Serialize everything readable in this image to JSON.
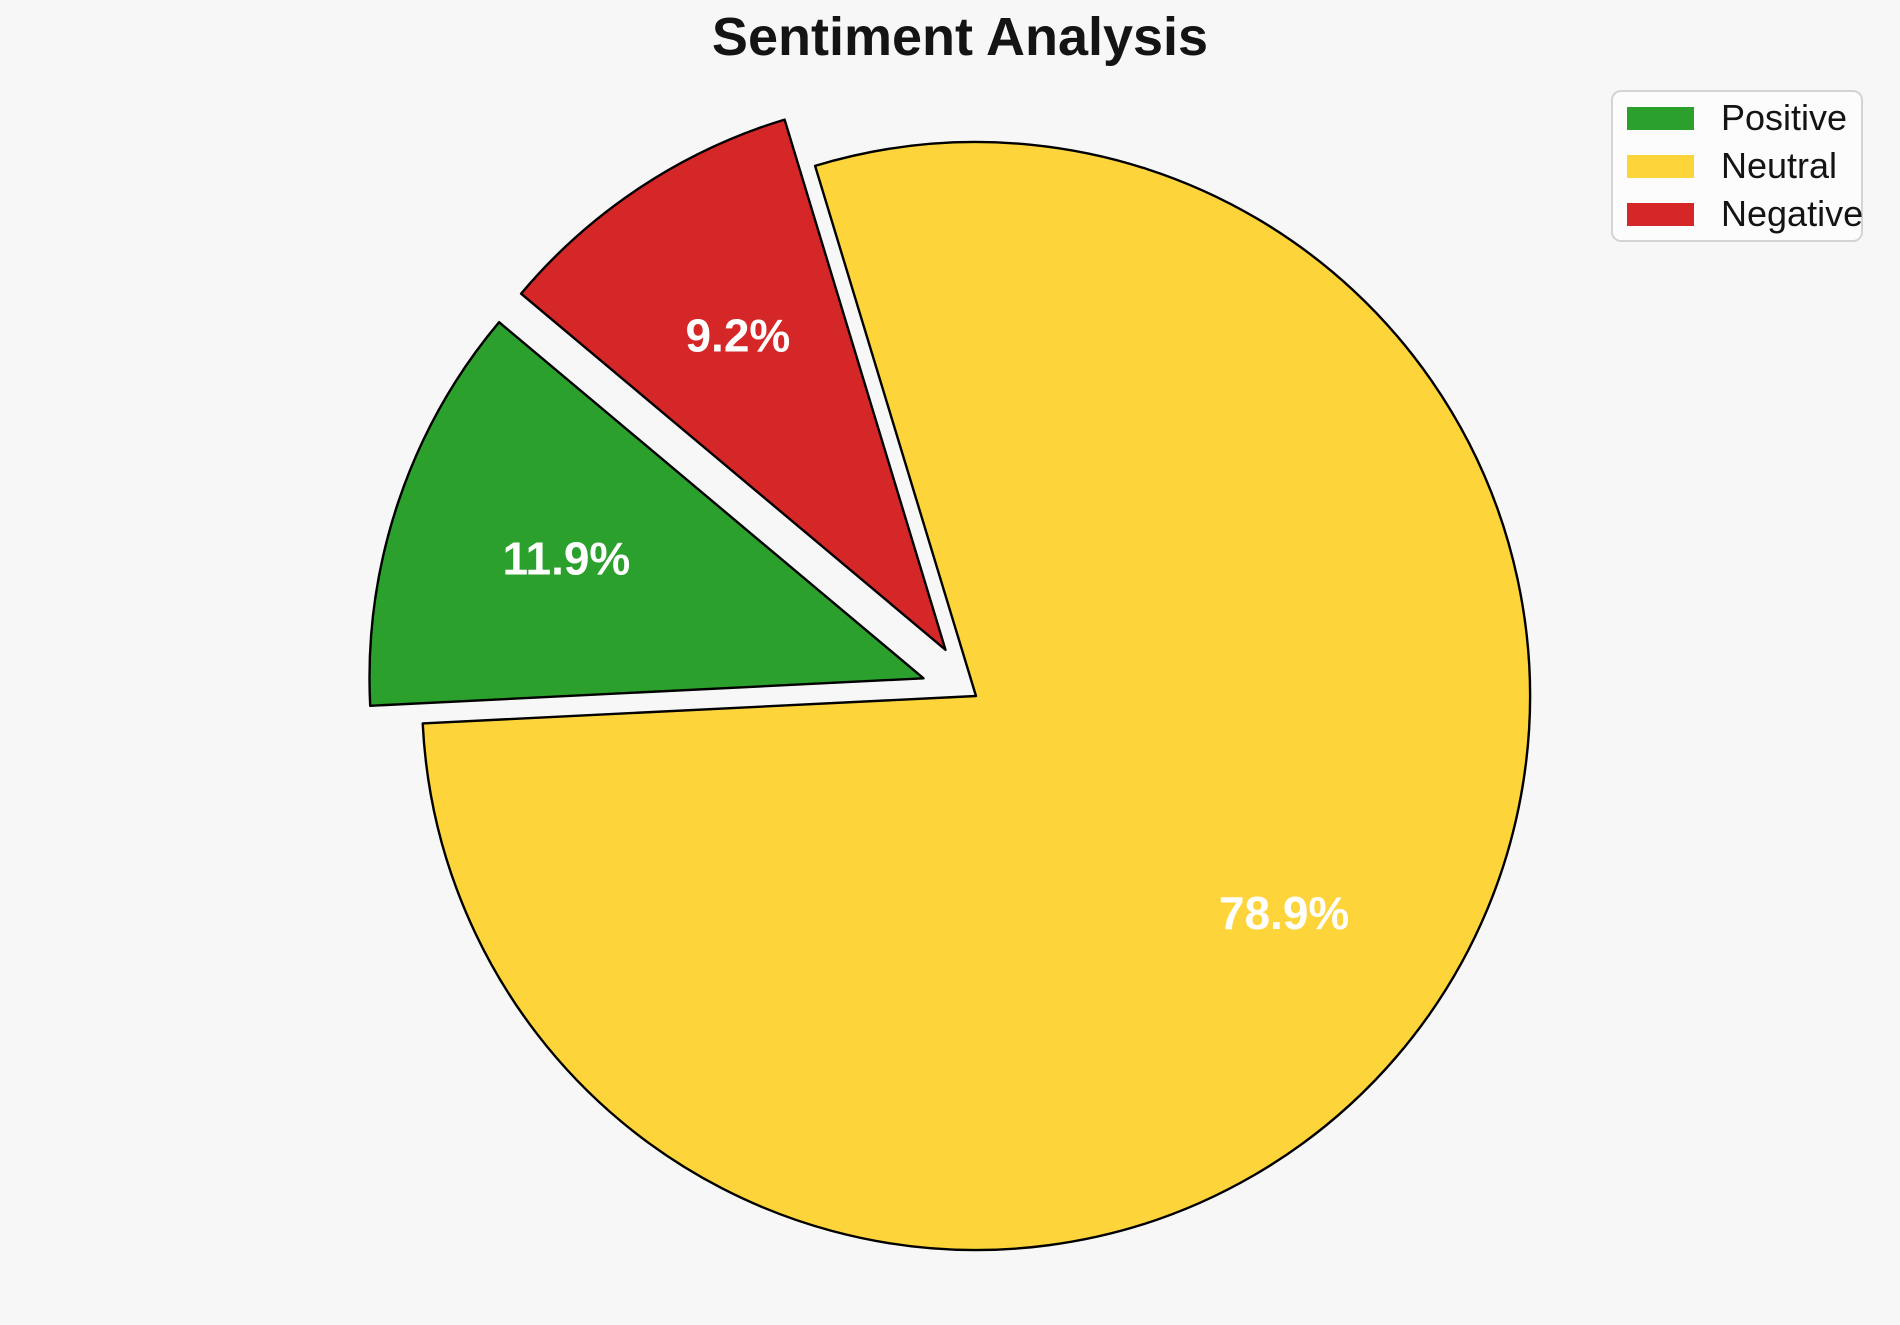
{
  "page": {
    "background": "#f7f7f7"
  },
  "chart_data": {
    "type": "pie",
    "title": "Sentiment Analysis",
    "slices": [
      {
        "label": "Positive",
        "value": 11.9,
        "pct_label": "11.9%",
        "color": "#2ca02c",
        "explode": 0.1
      },
      {
        "label": "Neutral",
        "value": 78.9,
        "pct_label": "78.9%",
        "color": "#fdd43a",
        "explode": 0
      },
      {
        "label": "Negative",
        "value": 9.2,
        "pct_label": "9.2%",
        "color": "#d62728",
        "explode": 0.1
      }
    ],
    "startangle": 140,
    "counterclock": true,
    "edge_color": "#000000",
    "edge_width": 2.4,
    "pct_label_color": "#ffffff",
    "pctdistance": 0.68,
    "legend": {
      "position": "upper right",
      "entries": [
        "Positive",
        "Neutral",
        "Negative"
      ]
    }
  }
}
